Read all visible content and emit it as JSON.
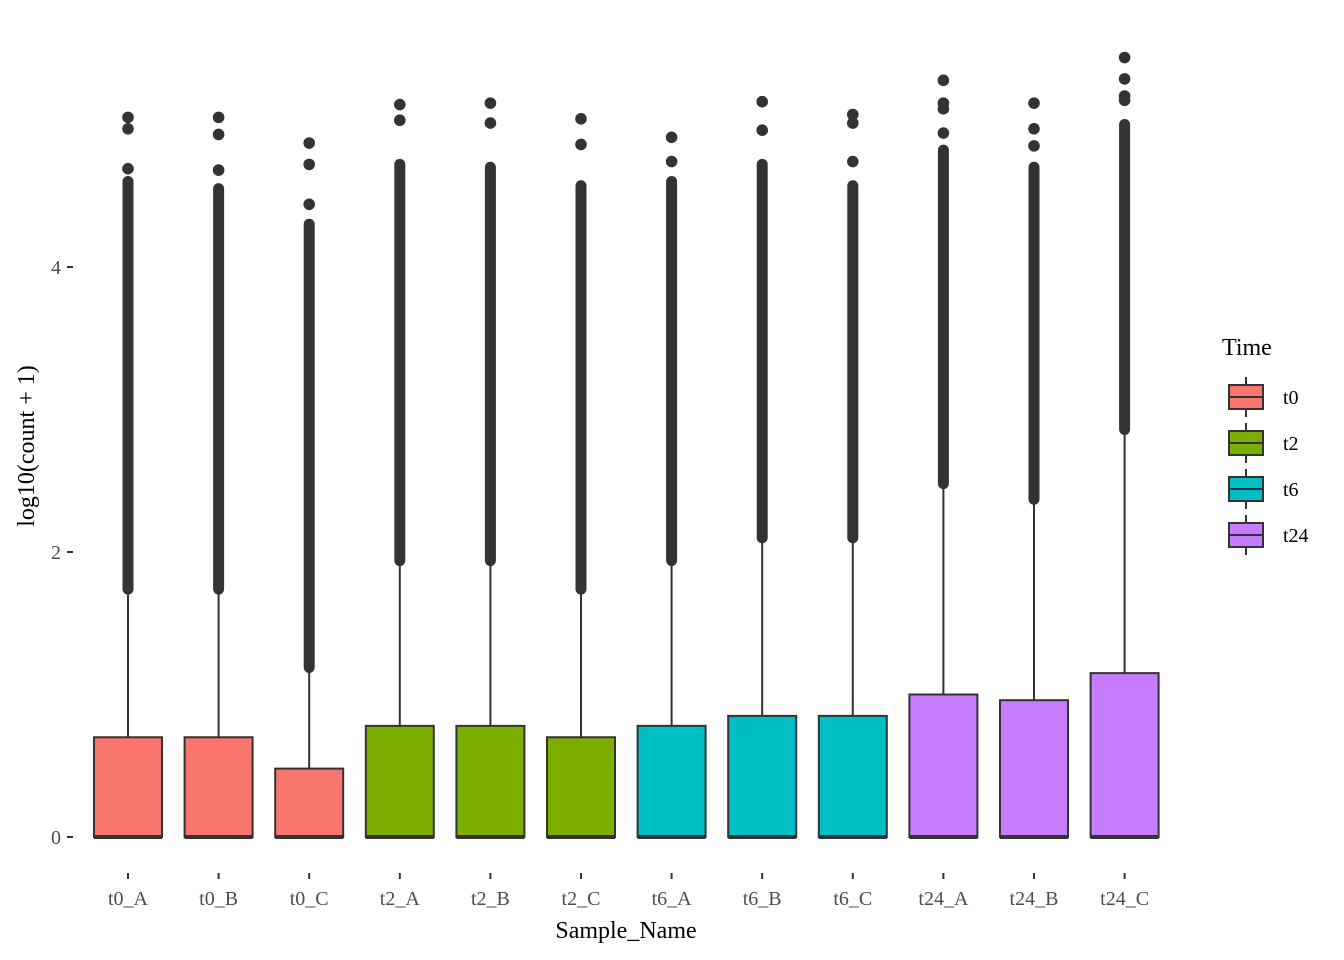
{
  "chart_data": {
    "type": "boxplot",
    "xlabel": "Sample_Name",
    "ylabel": "log10(count + 1)",
    "ylim": [
      -0.2,
      5.1
    ],
    "yticks": [
      0,
      2,
      4
    ],
    "grid": false,
    "legend": {
      "title": "Time",
      "placement": "right",
      "entries": [
        {
          "label": "t0",
          "color": "#F8766D"
        },
        {
          "label": "t2",
          "color": "#7CAE00"
        },
        {
          "label": "t6",
          "color": "#00BFC4"
        },
        {
          "label": "t24",
          "color": "#C77CFF"
        }
      ]
    },
    "categories": [
      "t0_A",
      "t0_B",
      "t0_C",
      "t2_A",
      "t2_B",
      "t2_C",
      "t6_A",
      "t6_B",
      "t6_C",
      "t24_A",
      "t24_B",
      "t24_C"
    ],
    "boxes": [
      {
        "name": "t0_A",
        "group": "t0",
        "min": 0,
        "q1": 0,
        "median": 0,
        "q3": 0.7,
        "whisker_high": 1.74,
        "outliers_dense_to": 4.6,
        "outliers": [
          4.69,
          4.97,
          5.05
        ]
      },
      {
        "name": "t0_B",
        "group": "t0",
        "min": 0,
        "q1": 0,
        "median": 0,
        "q3": 0.7,
        "whisker_high": 1.74,
        "outliers_dense_to": 4.55,
        "outliers": [
          4.68,
          4.93,
          5.05
        ]
      },
      {
        "name": "t0_C",
        "group": "t0",
        "min": 0,
        "q1": 0,
        "median": 0,
        "q3": 0.48,
        "whisker_high": 1.19,
        "outliers_dense_to": 4.3,
        "outliers": [
          4.44,
          4.72,
          4.87
        ]
      },
      {
        "name": "t2_A",
        "group": "t2",
        "min": 0,
        "q1": 0,
        "median": 0,
        "q3": 0.78,
        "whisker_high": 1.94,
        "outliers_dense_to": 4.72,
        "outliers": [
          5.03,
          5.14
        ]
      },
      {
        "name": "t2_B",
        "group": "t2",
        "min": 0,
        "q1": 0,
        "median": 0,
        "q3": 0.78,
        "whisker_high": 1.94,
        "outliers_dense_to": 4.7,
        "outliers": [
          5.01,
          5.15
        ]
      },
      {
        "name": "t2_C",
        "group": "t2",
        "min": 0,
        "q1": 0,
        "median": 0,
        "q3": 0.7,
        "whisker_high": 1.74,
        "outliers_dense_to": 4.57,
        "outliers": [
          4.86,
          5.04
        ]
      },
      {
        "name": "t6_A",
        "group": "t6",
        "min": 0,
        "q1": 0,
        "median": 0,
        "q3": 0.78,
        "whisker_high": 1.94,
        "outliers_dense_to": 4.6,
        "outliers": [
          4.74,
          4.91
        ]
      },
      {
        "name": "t6_B",
        "group": "t6",
        "min": 0,
        "q1": 0,
        "median": 0,
        "q3": 0.85,
        "whisker_high": 2.1,
        "outliers_dense_to": 4.72,
        "outliers": [
          4.96,
          5.16
        ]
      },
      {
        "name": "t6_C",
        "group": "t6",
        "min": 0,
        "q1": 0,
        "median": 0,
        "q3": 0.85,
        "whisker_high": 2.1,
        "outliers_dense_to": 4.57,
        "outliers": [
          4.74,
          5.01,
          5.07
        ]
      },
      {
        "name": "t24_A",
        "group": "t24",
        "min": 0,
        "q1": 0,
        "median": 0,
        "q3": 1.0,
        "whisker_high": 2.48,
        "outliers_dense_to": 4.82,
        "outliers": [
          4.94,
          5.11,
          5.15,
          5.31
        ]
      },
      {
        "name": "t24_B",
        "group": "t24",
        "min": 0,
        "q1": 0,
        "median": 0,
        "q3": 0.96,
        "whisker_high": 2.37,
        "outliers_dense_to": 4.7,
        "outliers": [
          4.85,
          4.97,
          5.15
        ]
      },
      {
        "name": "t24_C",
        "group": "t24",
        "min": 0,
        "q1": 0,
        "median": 0,
        "q3": 1.15,
        "whisker_high": 2.86,
        "outliers_dense_to": 5.0,
        "outliers": [
          5.17,
          5.2,
          5.32,
          5.47
        ]
      }
    ]
  }
}
